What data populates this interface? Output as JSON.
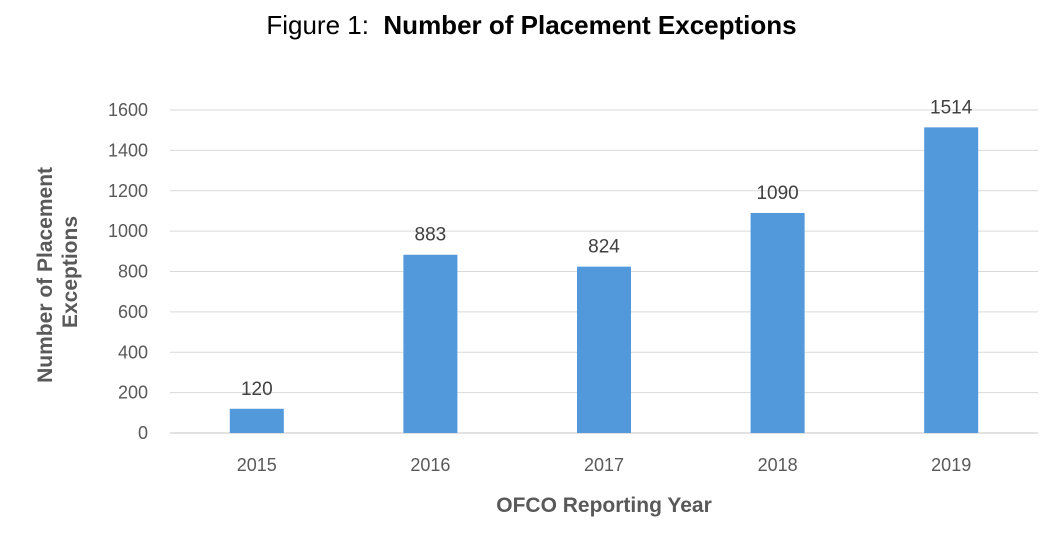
{
  "figure_label": "Figure 1:",
  "chart_data": {
    "type": "bar",
    "title": "Number of Placement Exceptions",
    "categories": [
      "2015",
      "2016",
      "2017",
      "2018",
      "2019"
    ],
    "values": [
      120,
      883,
      824,
      1090,
      1514
    ],
    "xlabel": "OFCO Reporting Year",
    "ylabel_lines": [
      "Number of Placement",
      "Exceptions"
    ],
    "ylim": [
      0,
      1600
    ],
    "yticks": [
      0,
      200,
      400,
      600,
      800,
      1000,
      1200,
      1400,
      1600
    ],
    "grid": true,
    "bar_color": "#5199DA",
    "gridline_color": "#D9D9D9"
  }
}
